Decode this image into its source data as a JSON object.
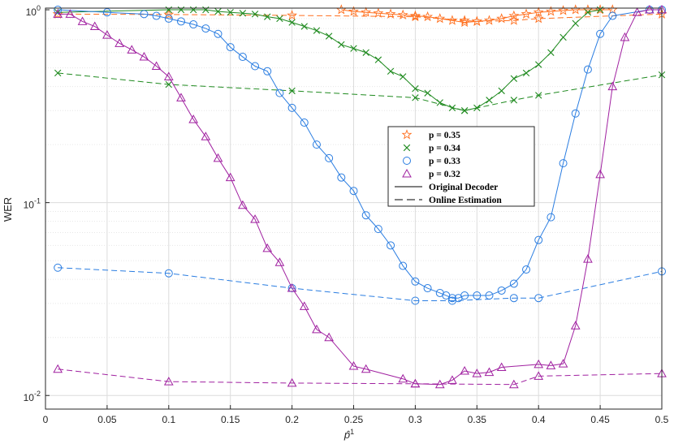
{
  "chart_data": {
    "type": "line",
    "xlabel": "p̂",
    "xlabel_superscript": "1",
    "ylabel": "WER",
    "xlim": [
      0,
      0.5
    ],
    "ylim": [
      0.0085,
      1.02
    ],
    "yscale": "log",
    "grid": true,
    "x_ticks": [
      0,
      0.05,
      0.1,
      0.15,
      0.2,
      0.25,
      0.3,
      0.35,
      0.4,
      0.45,
      0.5
    ],
    "x_tick_labels": [
      "0",
      "0.05",
      "0.1",
      "0.15",
      "0.2",
      "0.25",
      "0.3",
      "0.35",
      "0.4",
      "0.45",
      "0.5"
    ],
    "y_ticks": [
      0.01,
      0.1,
      1
    ],
    "y_tick_labels": [
      {
        "base": "10",
        "exp": "-2"
      },
      {
        "base": "10",
        "exp": "-1"
      },
      {
        "base": "10",
        "exp": "0"
      }
    ],
    "legend_position": "center-right",
    "legend": [
      {
        "label": "p = 0.35",
        "marker": "star",
        "color": "#ff6f1e",
        "series": "p035"
      },
      {
        "label": "p = 0.34",
        "marker": "x",
        "color": "#1f8a1f",
        "series": "p034"
      },
      {
        "label": "p = 0.33",
        "marker": "circle",
        "color": "#2a7de1",
        "series": "p033"
      },
      {
        "label": "p = 0.32",
        "marker": "triangle",
        "color": "#a020a0",
        "series": "p032"
      },
      {
        "label": "Original Decoder",
        "marker": "line-solid",
        "color": "#000000"
      },
      {
        "label": "Online Estimation",
        "marker": "line-dashed",
        "color": "#000000"
      }
    ],
    "series": [
      {
        "id": "p035",
        "style": "solid",
        "marker": "star",
        "color": "#ff6f1e",
        "x": [
          0.24,
          0.25,
          0.26,
          0.27,
          0.28,
          0.29,
          0.3,
          0.31,
          0.32,
          0.33,
          0.34,
          0.35,
          0.36,
          0.37,
          0.38,
          0.39,
          0.4,
          0.41,
          0.42,
          0.43,
          0.44,
          0.45,
          0.46
        ],
        "y": [
          1.0,
          0.98,
          0.97,
          0.96,
          0.95,
          0.94,
          0.93,
          0.92,
          0.9,
          0.88,
          0.86,
          0.87,
          0.88,
          0.9,
          0.93,
          0.95,
          0.97,
          0.98,
          0.99,
          1.0,
          1.0,
          1.0,
          1.0
        ]
      },
      {
        "id": "p035e",
        "style": "dashed",
        "marker": "star",
        "color": "#ff6f1e",
        "x": [
          0.01,
          0.1,
          0.2,
          0.3,
          0.34,
          0.35,
          0.38,
          0.4,
          0.5
        ],
        "y": [
          0.95,
          0.945,
          0.935,
          0.92,
          0.88,
          0.87,
          0.88,
          0.9,
          0.95
        ]
      },
      {
        "id": "p034",
        "style": "solid",
        "marker": "x",
        "color": "#1f8a1f",
        "x": [
          0.01,
          0.1,
          0.11,
          0.12,
          0.13,
          0.14,
          0.15,
          0.16,
          0.17,
          0.18,
          0.19,
          0.2,
          0.21,
          0.22,
          0.23,
          0.24,
          0.25,
          0.26,
          0.27,
          0.28,
          0.29,
          0.3,
          0.31,
          0.32,
          0.33,
          0.34,
          0.35,
          0.36,
          0.37,
          0.38,
          0.39,
          0.4,
          0.41,
          0.42,
          0.43,
          0.44,
          0.45
        ],
        "y": [
          0.97,
          1.0,
          1.0,
          1.0,
          1.0,
          0.98,
          0.97,
          0.96,
          0.95,
          0.92,
          0.9,
          0.86,
          0.82,
          0.78,
          0.73,
          0.66,
          0.63,
          0.6,
          0.55,
          0.48,
          0.45,
          0.39,
          0.37,
          0.33,
          0.31,
          0.3,
          0.31,
          0.34,
          0.38,
          0.44,
          0.47,
          0.52,
          0.6,
          0.72,
          0.85,
          0.97,
          1.0
        ]
      },
      {
        "id": "p034e",
        "style": "dashed",
        "marker": "x",
        "color": "#1f8a1f",
        "x": [
          0.01,
          0.1,
          0.2,
          0.3,
          0.34,
          0.38,
          0.4,
          0.5
        ],
        "y": [
          0.47,
          0.41,
          0.38,
          0.35,
          0.3,
          0.34,
          0.36,
          0.46
        ]
      },
      {
        "id": "p033",
        "style": "solid",
        "marker": "circle",
        "color": "#2a7de1",
        "x": [
          0.01,
          0.05,
          0.08,
          0.09,
          0.1,
          0.11,
          0.12,
          0.13,
          0.14,
          0.15,
          0.16,
          0.17,
          0.18,
          0.19,
          0.2,
          0.21,
          0.22,
          0.23,
          0.24,
          0.25,
          0.26,
          0.27,
          0.28,
          0.29,
          0.3,
          0.31,
          0.32,
          0.325,
          0.33,
          0.335,
          0.34,
          0.35,
          0.36,
          0.37,
          0.38,
          0.39,
          0.4,
          0.41,
          0.42,
          0.43,
          0.44,
          0.45,
          0.46,
          0.49,
          0.5
        ],
        "y": [
          1.0,
          0.97,
          0.95,
          0.93,
          0.9,
          0.87,
          0.84,
          0.8,
          0.75,
          0.64,
          0.57,
          0.51,
          0.48,
          0.37,
          0.31,
          0.26,
          0.2,
          0.17,
          0.135,
          0.115,
          0.086,
          0.073,
          0.06,
          0.047,
          0.039,
          0.036,
          0.034,
          0.033,
          0.032,
          0.032,
          0.033,
          0.033,
          0.033,
          0.035,
          0.038,
          0.045,
          0.064,
          0.084,
          0.16,
          0.29,
          0.49,
          0.75,
          0.93,
          1.0,
          1.0
        ]
      },
      {
        "id": "p033e",
        "style": "dashed",
        "marker": "circle",
        "color": "#2a7de1",
        "x": [
          0.01,
          0.1,
          0.2,
          0.3,
          0.33,
          0.38,
          0.4,
          0.5
        ],
        "y": [
          0.046,
          0.043,
          0.036,
          0.031,
          0.031,
          0.032,
          0.032,
          0.044
        ]
      },
      {
        "id": "p032",
        "style": "solid",
        "marker": "triangle",
        "color": "#a020a0",
        "x": [
          0.01,
          0.02,
          0.03,
          0.04,
          0.05,
          0.06,
          0.07,
          0.08,
          0.09,
          0.1,
          0.11,
          0.12,
          0.13,
          0.14,
          0.15,
          0.16,
          0.17,
          0.18,
          0.19,
          0.2,
          0.21,
          0.22,
          0.23,
          0.25,
          0.26,
          0.29,
          0.3,
          0.32,
          0.33,
          0.34,
          0.35,
          0.36,
          0.37,
          0.4,
          0.41,
          0.42,
          0.43,
          0.44,
          0.45,
          0.46,
          0.47,
          0.48,
          0.49,
          0.5
        ],
        "y": [
          0.95,
          0.95,
          0.87,
          0.82,
          0.74,
          0.67,
          0.62,
          0.57,
          0.51,
          0.45,
          0.35,
          0.27,
          0.22,
          0.17,
          0.135,
          0.097,
          0.082,
          0.058,
          0.049,
          0.036,
          0.029,
          0.022,
          0.02,
          0.0142,
          0.0137,
          0.0122,
          0.0115,
          0.0114,
          0.012,
          0.0134,
          0.013,
          0.0132,
          0.014,
          0.0145,
          0.0143,
          0.0146,
          0.023,
          0.051,
          0.14,
          0.4,
          0.72,
          0.97,
          1.0,
          1.0
        ]
      },
      {
        "id": "p032e",
        "style": "dashed",
        "marker": "triangle",
        "color": "#a020a0",
        "x": [
          0.01,
          0.1,
          0.2,
          0.3,
          0.38,
          0.4,
          0.5
        ],
        "y": [
          0.0137,
          0.0118,
          0.0116,
          0.0115,
          0.0114,
          0.0126,
          0.013
        ]
      }
    ]
  }
}
